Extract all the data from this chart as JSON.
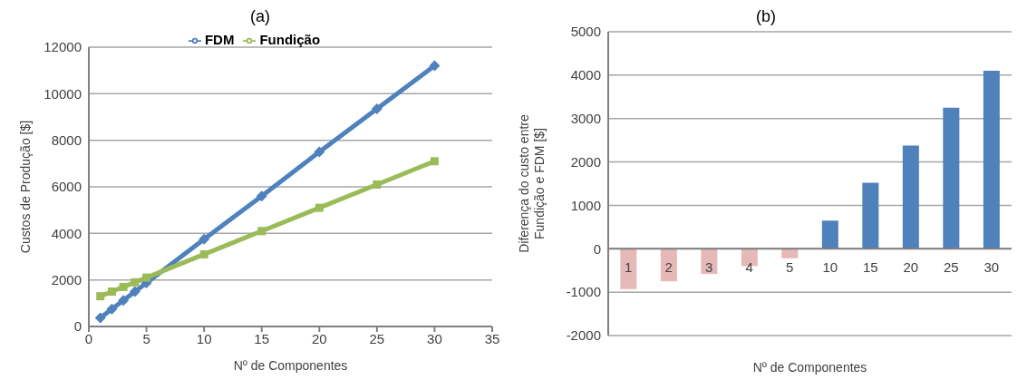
{
  "chart_data": [
    {
      "type": "line",
      "title": "(a)",
      "xlabel": "Nº de Componentes",
      "ylabel": "Custos de Produção [$]",
      "xlim": [
        0,
        35
      ],
      "xticks": [
        0,
        5,
        10,
        15,
        20,
        25,
        30,
        35
      ],
      "ylim": [
        0,
        12000
      ],
      "yticks": [
        0,
        2000,
        4000,
        6000,
        8000,
        10000,
        12000
      ],
      "grid": "y",
      "legend": "top",
      "line_style": "solid",
      "series": [
        {
          "name": "FDM",
          "color": "#4f81bd",
          "marker": "diamond",
          "x": [
            1,
            2,
            3,
            4,
            5,
            10,
            15,
            20,
            25,
            30
          ],
          "values": [
            370,
            750,
            1120,
            1500,
            1870,
            3750,
            5600,
            7500,
            9350,
            11200
          ]
        },
        {
          "name": "Fundição",
          "color": "#9bbb59",
          "marker": "square",
          "x": [
            1,
            2,
            3,
            4,
            5,
            10,
            15,
            20,
            25,
            30
          ],
          "values": [
            1300,
            1500,
            1700,
            1900,
            2100,
            3100,
            4100,
            5100,
            6100,
            7100
          ]
        }
      ]
    },
    {
      "type": "bar",
      "title": "(b)",
      "xlabel": "Nº de Componentes",
      "ylabel": "Diferença do custo entre Fundição e FDM [$]",
      "categories": [
        "1",
        "2",
        "3",
        "4",
        "5",
        "10",
        "15",
        "20",
        "25",
        "30"
      ],
      "values": [
        -930,
        -750,
        -580,
        -400,
        -220,
        650,
        1520,
        2380,
        3250,
        4100
      ],
      "colors": [
        "#e6b9b8",
        "#e6b9b8",
        "#e6b9b8",
        "#e6b9b8",
        "#e6b9b8",
        "#4f81bd",
        "#4f81bd",
        "#4f81bd",
        "#4f81bd",
        "#4f81bd"
      ],
      "ylim": [
        -2000,
        5000
      ],
      "yticks": [
        -2000,
        -1000,
        0,
        1000,
        2000,
        3000,
        4000,
        5000
      ],
      "grid": "y"
    }
  ]
}
